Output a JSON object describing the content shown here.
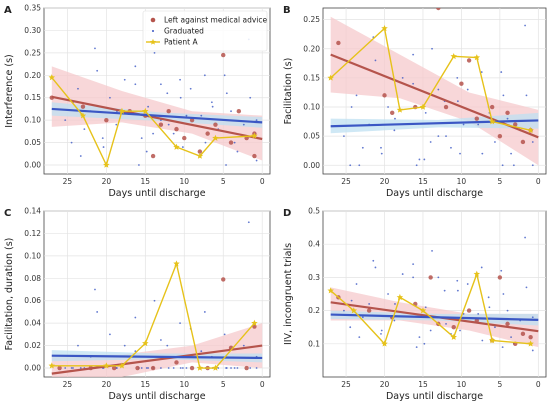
{
  "colors": {
    "left_against_advice": "#b5544c",
    "graduated": "#3b57c4",
    "patient_a": "#e6c21a",
    "left_ci_fill": "#f6c9cc",
    "graduated_ci_fill": "#bfe0f2",
    "grid": "#e3e3e3",
    "axes": "#444444"
  },
  "legend": {
    "placement": "top-right of panel A",
    "items": [
      {
        "label": "Left against medical advice",
        "marker": "circle",
        "color": "#b5544c"
      },
      {
        "label": "Graduated",
        "marker": "dot",
        "color": "#3b57c4"
      },
      {
        "label": "Patient A",
        "marker": "star-line",
        "color": "#e6c21a"
      }
    ]
  },
  "chart_data": [
    {
      "panel": "A",
      "type": "scatter",
      "xlabel": "Days until discharge",
      "ylabel": "Interference (s)",
      "x_reversed": true,
      "xlim": [
        28,
        -1
      ],
      "ylim": [
        -0.02,
        0.35
      ],
      "xticks": [
        25,
        20,
        15,
        10,
        5,
        0
      ],
      "yticks": [
        0.0,
        0.05,
        0.1,
        0.15,
        0.2,
        0.25,
        0.3,
        0.35
      ],
      "ytick_labels": [
        "0.00",
        "0.05",
        "0.10",
        "0.15",
        "0.20",
        "0.25",
        "0.30",
        "0.35"
      ],
      "grid": true,
      "patient_a": {
        "x": [
          27,
          23,
          20,
          18,
          15,
          11,
          8,
          6,
          1
        ],
        "y": [
          0.195,
          0.11,
          0.0,
          0.12,
          0.12,
          0.04,
          0.02,
          0.06,
          0.065
        ]
      },
      "fit_left": {
        "x": [
          27,
          0
        ],
        "y": [
          0.152,
          0.058
        ]
      },
      "fit_left_ci": {
        "x": [
          27,
          18,
          9,
          0
        ],
        "upper": [
          0.22,
          0.165,
          0.12,
          0.11
        ],
        "lower": [
          0.085,
          0.095,
          0.07,
          0.01
        ]
      },
      "fit_graduated": {
        "x": [
          27,
          0
        ],
        "y": [
          0.125,
          0.095
        ]
      },
      "fit_graduated_ci": {
        "x": [
          27,
          13,
          0
        ],
        "upper": [
          0.14,
          0.117,
          0.107
        ],
        "lower": [
          0.11,
          0.098,
          0.083
        ]
      },
      "left_points": {
        "x": [
          27,
          23,
          20,
          17,
          15,
          14,
          13,
          12,
          11,
          10,
          9,
          8,
          7,
          6,
          5,
          4,
          3,
          2,
          1,
          1
        ],
        "y": [
          0.15,
          0.13,
          0.1,
          0.12,
          0.11,
          0.02,
          0.09,
          0.12,
          0.08,
          0.06,
          0.1,
          0.03,
          0.07,
          0.09,
          0.245,
          0.05,
          0.12,
          0.06,
          0.07,
          0.02
        ]
      },
      "graduated_points": {
        "x": [
          26,
          25,
          24,
          23,
          22,
          21,
          20,
          19,
          18,
          17,
          16,
          15,
          14,
          13,
          12,
          11,
          10,
          9,
          8,
          7,
          6,
          5,
          4,
          3,
          2,
          1,
          0,
          24,
          22,
          19,
          16,
          13,
          10,
          7,
          4,
          1,
          25,
          21,
          18,
          15,
          12,
          9,
          6,
          3,
          0,
          17,
          11,
          5,
          8,
          14
        ],
        "y": [
          0.1,
          0.05,
          0.17,
          0.08,
          0.12,
          0.21,
          0.04,
          0.15,
          0.09,
          0.18,
          0.06,
          0.13,
          0.25,
          0.1,
          0.16,
          0.07,
          0.19,
          0.11,
          0.05,
          0.14,
          0.08,
          0.2,
          0.12,
          0.03,
          0.09,
          0.15,
          0.1,
          0.02,
          0.26,
          0.12,
          0.0,
          0.18,
          0.04,
          0.2,
          0.16,
          0.28,
          0.14,
          0.06,
          0.19,
          0.03,
          0.09,
          0.17,
          0.13,
          0.05,
          0.01,
          0.22,
          0.15,
          0.0,
          0.11,
          0.07
        ]
      }
    },
    {
      "panel": "B",
      "type": "scatter",
      "xlabel": "Days until discharge",
      "ylabel": "Facilitation (s)",
      "x_reversed": true,
      "xlim": [
        28,
        -1
      ],
      "ylim": [
        -0.015,
        0.27
      ],
      "xticks": [
        25,
        20,
        15,
        10,
        5,
        0
      ],
      "yticks": [
        0.0,
        0.05,
        0.1,
        0.15,
        0.2,
        0.25
      ],
      "ytick_labels": [
        "0.00",
        "0.05",
        "0.10",
        "0.15",
        "0.20",
        "0.25"
      ],
      "grid": true,
      "patient_a": {
        "x": [
          27,
          20,
          18,
          15,
          11,
          8,
          6,
          1
        ],
        "y": [
          0.15,
          0.235,
          0.095,
          0.1,
          0.187,
          0.185,
          0.075,
          0.06
        ]
      },
      "fit_left": {
        "x": [
          27,
          0
        ],
        "y": [
          0.19,
          0.048
        ]
      },
      "fit_left_ci": {
        "x": [
          27,
          18,
          9,
          0
        ],
        "upper": [
          0.255,
          0.19,
          0.125,
          0.095
        ],
        "lower": [
          0.125,
          0.115,
          0.075,
          0.0
        ]
      },
      "fit_graduated": {
        "x": [
          27,
          0
        ],
        "y": [
          0.067,
          0.077
        ]
      },
      "fit_graduated_ci": {
        "x": [
          27,
          13,
          0
        ],
        "upper": [
          0.08,
          0.078,
          0.09
        ],
        "lower": [
          0.055,
          0.065,
          0.063
        ]
      },
      "left_points": {
        "x": [
          26,
          20,
          19,
          16,
          13,
          12,
          10,
          9,
          8,
          6,
          5,
          4,
          3,
          2,
          1
        ],
        "y": [
          0.21,
          0.12,
          0.09,
          0.1,
          0.27,
          0.1,
          0.14,
          0.18,
          0.08,
          0.1,
          0.05,
          0.09,
          0.07,
          0.04,
          0.06
        ]
      },
      "graduated_points": {
        "x": [
          26,
          25,
          24,
          23,
          22,
          21,
          20,
          19,
          18,
          17,
          16,
          15,
          14,
          13,
          12,
          11,
          10,
          9,
          8,
          7,
          6,
          5,
          4,
          3,
          2,
          1,
          0,
          24,
          22,
          19,
          16,
          13,
          10,
          7,
          4,
          1,
          25,
          21,
          18,
          15,
          12,
          9,
          6,
          3,
          0,
          17,
          11,
          5,
          8,
          14
        ],
        "y": [
          0.05,
          0.0,
          0.12,
          0.03,
          0.07,
          0.18,
          0.02,
          0.1,
          0.06,
          0.14,
          0.01,
          0.09,
          0.2,
          0.05,
          0.11,
          0.03,
          0.15,
          0.07,
          0.02,
          0.1,
          0.04,
          0.16,
          0.08,
          0.0,
          0.06,
          0.12,
          0.04,
          0.0,
          0.22,
          0.08,
          0.0,
          0.13,
          0.02,
          0.16,
          0.12,
          0.24,
          0.1,
          0.03,
          0.15,
          0.01,
          0.05,
          0.13,
          0.09,
          0.02,
          0.0,
          0.19,
          0.11,
          0.0,
          0.07,
          0.04
        ]
      }
    },
    {
      "panel": "C",
      "type": "scatter",
      "xlabel": "Days until discharge",
      "ylabel": "Facilitation, duration (s)",
      "x_reversed": true,
      "xlim": [
        28,
        -1
      ],
      "ylim": [
        -0.008,
        0.14
      ],
      "xticks": [
        25,
        20,
        15,
        10,
        5,
        0
      ],
      "yticks": [
        0.0,
        0.02,
        0.04,
        0.06,
        0.08,
        0.1,
        0.12,
        0.14
      ],
      "ytick_labels": [
        "0.00",
        "0.02",
        "0.04",
        "0.06",
        "0.08",
        "0.10",
        "0.12",
        "0.14"
      ],
      "grid": true,
      "patient_a": {
        "x": [
          27,
          20,
          18,
          15,
          11,
          8,
          6,
          1
        ],
        "y": [
          0.002,
          0.002,
          0.002,
          0.022,
          0.093,
          0.0,
          0.0,
          0.04
        ]
      },
      "fit_left": {
        "x": [
          27,
          0
        ],
        "y": [
          -0.005,
          0.02
        ]
      },
      "fit_left_ci": {
        "x": [
          27,
          18,
          9,
          0
        ],
        "upper": [
          0.012,
          0.012,
          0.02,
          0.04
        ],
        "lower": [
          -0.02,
          -0.008,
          0.005,
          0.0
        ]
      },
      "fit_graduated": {
        "x": [
          27,
          0
        ],
        "y": [
          0.011,
          0.009
        ]
      },
      "fit_graduated_ci": {
        "x": [
          27,
          13,
          0
        ],
        "upper": [
          0.016,
          0.013,
          0.013
        ],
        "lower": [
          0.006,
          0.008,
          0.005
        ]
      },
      "left_points": {
        "x": [
          26,
          22,
          19,
          16,
          14,
          11,
          9,
          7,
          5,
          4,
          2,
          1
        ],
        "y": [
          0.0,
          0.0,
          0.0,
          0.0,
          0.0,
          0.005,
          0.0,
          0.0,
          0.079,
          0.018,
          0.0,
          0.037
        ]
      },
      "graduated_points": {
        "x": [
          26,
          25,
          24,
          23,
          22,
          21,
          20,
          19,
          18,
          17,
          16,
          15,
          14,
          13,
          12,
          11,
          10,
          9,
          8,
          7,
          6,
          5,
          4,
          3,
          2,
          1,
          0,
          24,
          22,
          19,
          16,
          13,
          10,
          7,
          4,
          1,
          25,
          21,
          18,
          15,
          12,
          9,
          6,
          3,
          0,
          17,
          11,
          5,
          8,
          14
        ],
        "y": [
          0.0,
          0.0,
          0.02,
          0.0,
          0.01,
          0.05,
          0.0,
          0.03,
          0.0,
          0.015,
          0.0,
          0.0,
          0.06,
          0.0,
          0.02,
          0.0,
          0.04,
          0.0,
          0.0,
          0.01,
          0.0,
          0.03,
          0.0,
          0.0,
          0.02,
          0.0,
          0.01,
          0.0,
          0.07,
          0.0,
          0.0,
          0.025,
          0.0,
          0.05,
          0.0,
          0.13,
          0.0,
          0.0,
          0.02,
          0.0,
          0.0,
          0.035,
          0.0,
          0.0,
          0.0,
          0.045,
          0.0,
          0.0,
          0.015,
          0.0
        ]
      }
    },
    {
      "panel": "D",
      "type": "scatter",
      "xlabel": "Days until discharge",
      "ylabel": "IIV, incongruent trials",
      "x_reversed": true,
      "xlim": [
        28,
        -1
      ],
      "ylim": [
        0.0,
        0.5
      ],
      "xticks": [
        25,
        20,
        15,
        10,
        5,
        0
      ],
      "yticks": [
        0.1,
        0.2,
        0.3,
        0.4,
        0.5
      ],
      "ytick_labels": [
        "0.1",
        "0.2",
        "0.3",
        "0.4",
        "0.5"
      ],
      "grid": true,
      "patient_a": {
        "x": [
          27,
          24,
          20,
          18,
          15,
          11,
          8,
          6,
          1
        ],
        "y": [
          0.26,
          0.2,
          0.1,
          0.24,
          0.2,
          0.12,
          0.31,
          0.11,
          0.1
        ]
      },
      "fit_left": {
        "x": [
          27,
          0
        ],
        "y": [
          0.225,
          0.138
        ]
      },
      "fit_left_ci": {
        "x": [
          27,
          18,
          9,
          0
        ],
        "upper": [
          0.27,
          0.225,
          0.19,
          0.19
        ],
        "lower": [
          0.17,
          0.17,
          0.14,
          0.09
        ]
      },
      "fit_graduated": {
        "x": [
          27,
          0
        ],
        "y": [
          0.188,
          0.172
        ]
      },
      "fit_graduated_ci": {
        "x": [
          27,
          13,
          0
        ],
        "upper": [
          0.2,
          0.19,
          0.19
        ],
        "lower": [
          0.175,
          0.17,
          0.155
        ]
      },
      "left_points": {
        "x": [
          26,
          22,
          19,
          16,
          14,
          13,
          11,
          9,
          8,
          6,
          5,
          4,
          3,
          2,
          1
        ],
        "y": [
          0.24,
          0.2,
          0.18,
          0.22,
          0.3,
          0.16,
          0.15,
          0.2,
          0.17,
          0.11,
          0.3,
          0.16,
          0.1,
          0.13,
          0.12
        ]
      },
      "graduated_points": {
        "x": [
          26,
          25,
          24,
          23,
          22,
          21,
          20,
          19,
          18,
          17,
          16,
          15,
          14,
          13,
          12,
          11,
          10,
          9,
          8,
          7,
          6,
          5,
          4,
          3,
          2,
          1,
          0,
          24,
          22,
          19,
          16,
          13,
          10,
          7,
          4,
          1,
          25,
          21,
          18,
          15,
          12,
          9,
          6,
          3,
          0,
          17,
          11,
          5,
          8,
          14
        ],
        "y": [
          0.2,
          0.15,
          0.28,
          0.18,
          0.22,
          0.33,
          0.14,
          0.25,
          0.17,
          0.3,
          0.12,
          0.21,
          0.38,
          0.16,
          0.26,
          0.13,
          0.29,
          0.19,
          0.11,
          0.24,
          0.15,
          0.32,
          0.2,
          0.1,
          0.17,
          0.27,
          0.18,
          0.12,
          0.35,
          0.22,
          0.09,
          0.3,
          0.14,
          0.33,
          0.25,
          0.42,
          0.23,
          0.13,
          0.31,
          0.1,
          0.16,
          0.28,
          0.21,
          0.12,
          0.08,
          0.34,
          0.26,
          0.09,
          0.19,
          0.14
        ]
      }
    }
  ]
}
